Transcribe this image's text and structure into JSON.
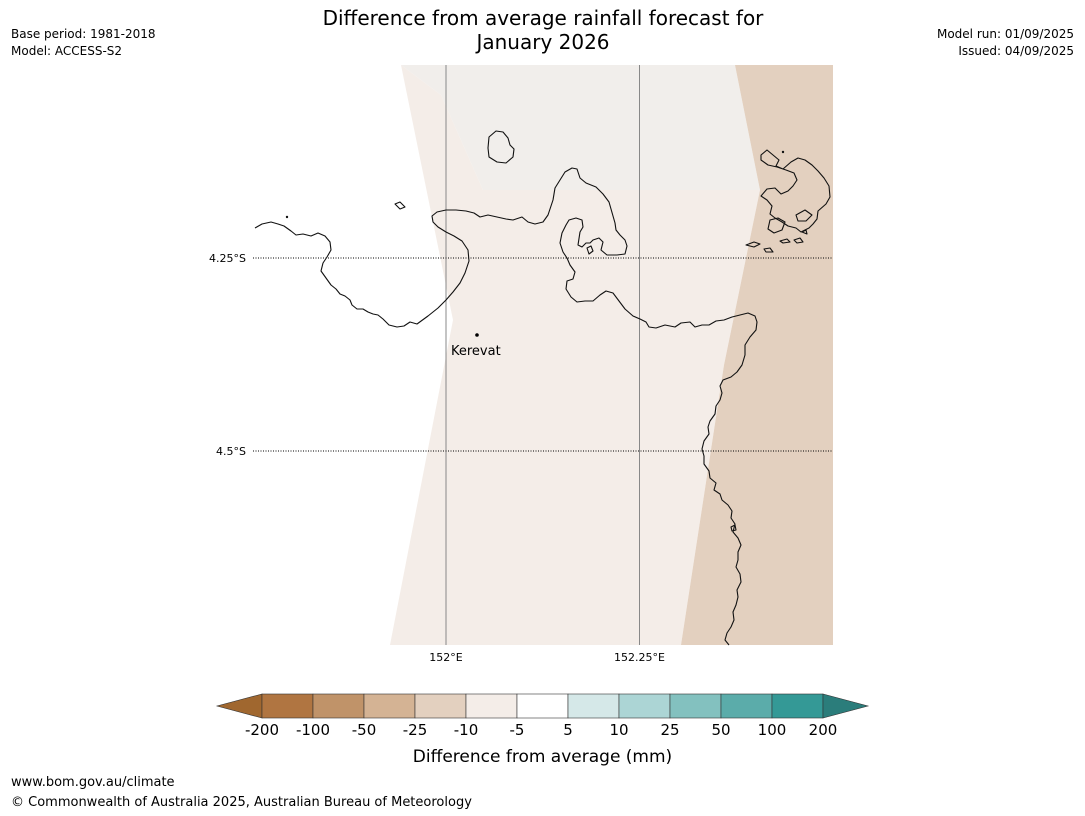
{
  "header": {
    "title_line1": "Difference from average rainfall forecast for",
    "title_line2": "January 2026",
    "base_period": "Base period: 1981-2018",
    "model": "Model: ACCESS-S2",
    "model_run": "Model run: 01/09/2025",
    "issued": "Issued: 04/09/2025"
  },
  "map": {
    "lat_labels": [
      "4.25°S",
      "4.5°S"
    ],
    "lon_labels": [
      "152°E",
      "152.25°E"
    ],
    "places": [
      {
        "name": "Kerevat"
      }
    ],
    "region_colors": {
      "light": "#f4ede8",
      "tan": "#e3d0bf",
      "pale": "#f1eeeb"
    }
  },
  "colorbar": {
    "title": "Difference from average (mm)",
    "ticks": [
      "-200",
      "-100",
      "-50",
      "-25",
      "-10",
      "-5",
      "5",
      "10",
      "25",
      "50",
      "100",
      "200"
    ],
    "colors": [
      "#a0672f",
      "#b07541",
      "#c09369",
      "#d4b394",
      "#e3d0bf",
      "#f4ede8",
      "#ffffff",
      "#d5e8e8",
      "#acd5d5",
      "#83c1bf",
      "#5bacaa",
      "#349996",
      "#2b7d7b"
    ]
  },
  "footer": {
    "url": "www.bom.gov.au/climate",
    "copyright": "© Commonwealth of Australia 2025, Australian Bureau of Meteorology"
  }
}
